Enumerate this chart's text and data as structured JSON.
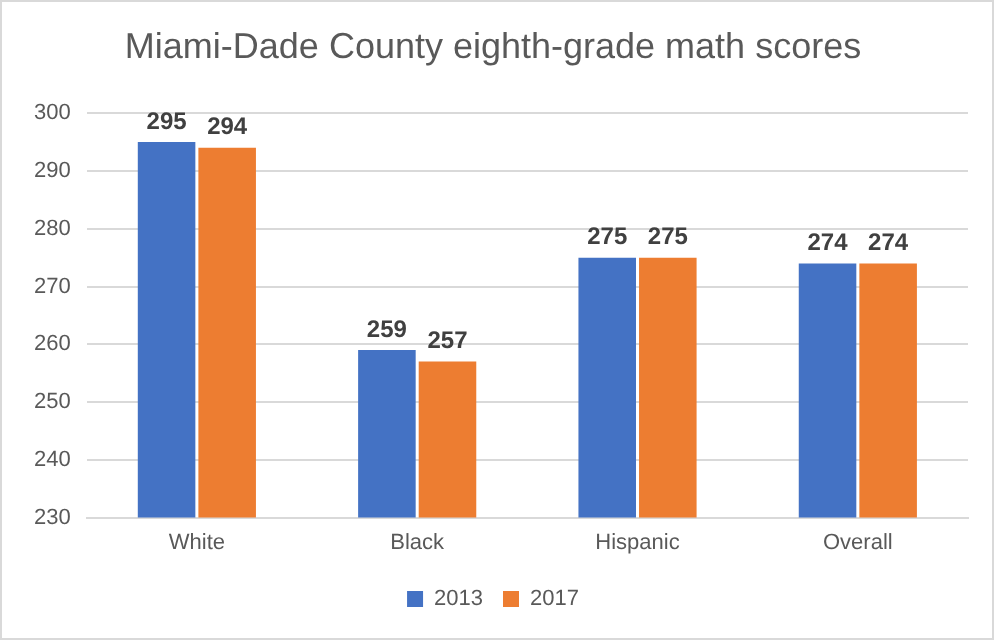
{
  "chart_data": {
    "type": "bar",
    "title": "Miami-Dade County eighth-grade math scores",
    "categories": [
      "White",
      "Black",
      "Hispanic",
      "Overall"
    ],
    "series": [
      {
        "name": "2013",
        "color": "#4472c4",
        "values": [
          295,
          259,
          275,
          274
        ]
      },
      {
        "name": "2017",
        "color": "#ed7d31",
        "values": [
          294,
          257,
          275,
          274
        ]
      }
    ],
    "ylim": [
      230,
      300
    ],
    "yticks": [
      230,
      240,
      250,
      260,
      270,
      280,
      290,
      300
    ],
    "grid": "y",
    "legend": "bottom",
    "data_labels": true
  }
}
